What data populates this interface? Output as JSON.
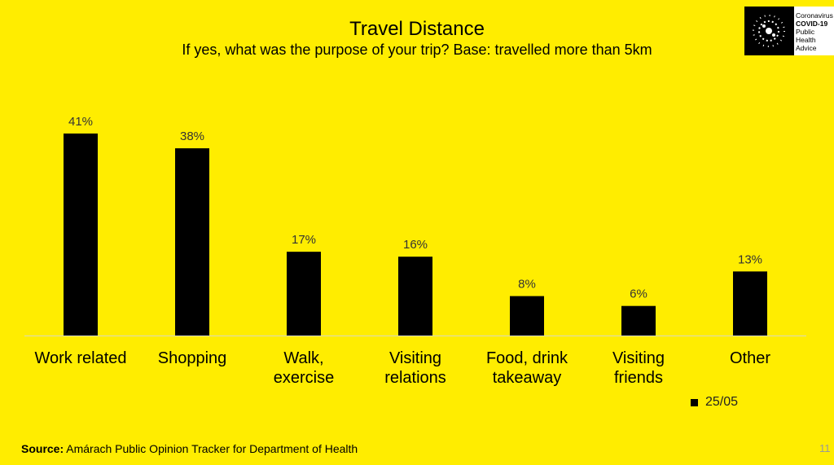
{
  "chart_data": {
    "type": "bar",
    "title": "Travel Distance",
    "subtitle": "If yes, what was the purpose of your trip? Base: travelled more than 5km",
    "categories": [
      "Work related",
      "Shopping",
      "Walk,\nexercise",
      "Visiting\nrelations",
      "Food, drink\ntakeaway",
      "Visiting\nfriends",
      "Other"
    ],
    "series": [
      {
        "name": "25/05",
        "color": "#000000",
        "values": [
          41,
          38,
          17,
          16,
          8,
          6,
          13
        ],
        "value_labels": [
          "41%",
          "38%",
          "17%",
          "16%",
          "8%",
          "6%",
          "13%"
        ]
      }
    ]
  },
  "logo": [
    "Coronavirus",
    "COVID-19",
    "Public Health",
    "Advice"
  ],
  "source": {
    "label": "Source:",
    "text": "Amárach Public Opinion Tracker for Department of Health"
  },
  "page_number": "11"
}
